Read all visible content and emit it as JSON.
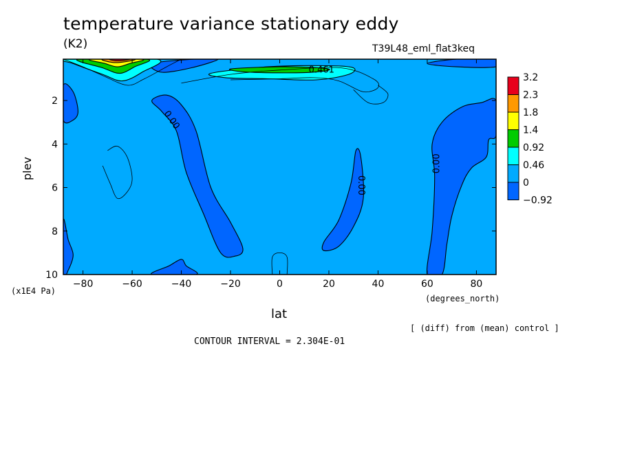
{
  "figure": {
    "title": "temperature variance stationary eddy",
    "units": "(K2)",
    "experiment": "T39L48_eml_flat3keq",
    "diff_note": "[ (diff) from (mean) control ]",
    "contour_interval": "CONTOUR INTERVAL = 2.304E-01"
  },
  "chart_data": {
    "type": "heatmap",
    "title": "temperature variance stationary eddy",
    "xlabel": "lat",
    "ylabel": "plev",
    "x_unit_label": "(degrees_north)",
    "y_unit_label": "(x1E4 Pa)",
    "xlim": [
      -88,
      88
    ],
    "ylim": [
      10,
      0.1
    ],
    "y_inverted": true,
    "x_ticks": [
      -80,
      -60,
      -40,
      -20,
      0,
      20,
      40,
      60,
      80
    ],
    "x_tick_labels": [
      "−80",
      "−60",
      "−40",
      "−20",
      "0",
      "20",
      "40",
      "60",
      "80"
    ],
    "y_ticks": [
      2,
      4,
      6,
      8,
      10
    ],
    "y_tick_labels": [
      "2",
      "4",
      "6",
      "8",
      "10"
    ],
    "colorbar": {
      "labels": [
        "3.2",
        "2.3",
        "1.8",
        "1.4",
        "0.92",
        "0.46",
        "0",
        "−0.92"
      ],
      "colors": [
        "#e8001c",
        "#ff9900",
        "#ffff00",
        "#00cc00",
        "#00ffff",
        "#00aaff",
        "#0066ff"
      ]
    },
    "background_color": "#00aaff",
    "negative_color": "#0066ff",
    "contour_labels": [
      {
        "text": "0.00",
        "lat": -44,
        "plev": 2.9,
        "rotate": 55
      },
      {
        "text": "0.00",
        "lat": 33,
        "plev": 5.9,
        "rotate": 90
      },
      {
        "text": "0.00",
        "lat": 64,
        "plev": 4.9,
        "rotate": -90
      },
      {
        "text": "0.461",
        "lat": 17,
        "plev": 0.6,
        "rotate": 0
      }
    ],
    "regions": [
      {
        "level": -0.92,
        "label": "southern tilted tongue",
        "points": [
          [
            -52,
            2.0
          ],
          [
            -46,
            1.75
          ],
          [
            -40,
            2.2
          ],
          [
            -34,
            3.4
          ],
          [
            -28,
            6.0
          ],
          [
            -20,
            7.6
          ],
          [
            -15,
            8.8
          ],
          [
            -18,
            9.15
          ],
          [
            -24,
            9.0
          ],
          [
            -31,
            7.2
          ],
          [
            -38,
            5.3
          ],
          [
            -42,
            3.4
          ],
          [
            -48,
            2.5
          ]
        ]
      },
      {
        "level": -0.92,
        "label": "northern subtropical tongue",
        "points": [
          [
            31,
            4.3
          ],
          [
            33,
            4.6
          ],
          [
            34,
            6.5
          ],
          [
            30,
            7.8
          ],
          [
            24,
            8.7
          ],
          [
            18,
            8.9
          ],
          [
            18,
            8.5
          ],
          [
            24,
            7.5
          ],
          [
            29,
            5.8
          ]
        ]
      },
      {
        "level": -0.92,
        "label": "north polar band",
        "points": [
          [
            60,
            10
          ],
          [
            62,
            8.0
          ],
          [
            63,
            5.5
          ],
          [
            62,
            4.0
          ],
          [
            66,
            3.0
          ],
          [
            74,
            2.3
          ],
          [
            82,
            2.1
          ],
          [
            88,
            2.0
          ],
          [
            88,
            3.6
          ],
          [
            85,
            3.8
          ],
          [
            84,
            4.6
          ],
          [
            78,
            5.1
          ],
          [
            74,
            5.9
          ],
          [
            70,
            7.3
          ],
          [
            68,
            8.6
          ],
          [
            66,
            10
          ]
        ]
      },
      {
        "level": -0.92,
        "label": "far south edge",
        "points": [
          [
            -88,
            1.3
          ],
          [
            -84,
            1.6
          ],
          [
            -82,
            2.5
          ],
          [
            -84,
            2.9
          ],
          [
            -88,
            2.9
          ]
        ]
      },
      {
        "level": -0.92,
        "label": "south lower edge",
        "points": [
          [
            -88,
            7.5
          ],
          [
            -86,
            8.4
          ],
          [
            -84,
            9.1
          ],
          [
            -86,
            9.8
          ],
          [
            -88,
            10
          ]
        ]
      },
      {
        "level": -0.92,
        "label": "south surface patch",
        "points": [
          [
            -52,
            10
          ],
          [
            -45,
            9.6
          ],
          [
            -40,
            9.3
          ],
          [
            -38,
            9.6
          ],
          [
            -34,
            10
          ]
        ]
      },
      {
        "level": -0.92,
        "label": "top-left strip",
        "points": [
          [
            -52,
            0.3
          ],
          [
            -35,
            0.1
          ],
          [
            -25,
            0.1
          ],
          [
            -36,
            0.5
          ],
          [
            -48,
            0.7
          ]
        ]
      },
      {
        "level": -0.92,
        "label": "top-right strip",
        "points": [
          [
            60,
            0.3
          ],
          [
            72,
            0.1
          ],
          [
            88,
            0.1
          ],
          [
            88,
            0.45
          ],
          [
            72,
            0.45
          ]
        ]
      },
      {
        "level": 0.46,
        "label": "south top maximum cyan",
        "points": [
          [
            -88,
            0.1
          ],
          [
            -50,
            0.1
          ],
          [
            -56,
            0.7
          ],
          [
            -64,
            1.1
          ],
          [
            -72,
            0.8
          ],
          [
            -84,
            0.3
          ]
        ]
      },
      {
        "level": 0.92,
        "label": "south top maximum green",
        "points": [
          [
            -82,
            0.1
          ],
          [
            -54,
            0.1
          ],
          [
            -59,
            0.45
          ],
          [
            -65,
            0.75
          ],
          [
            -72,
            0.5
          ]
        ]
      },
      {
        "level": 1.4,
        "label": "south top maximum yellow",
        "points": [
          [
            -77,
            0.1
          ],
          [
            -56,
            0.1
          ],
          [
            -61,
            0.3
          ],
          [
            -66,
            0.45
          ],
          [
            -71,
            0.3
          ]
        ]
      },
      {
        "level": 2.3,
        "label": "south top maximum orange",
        "points": [
          [
            -72,
            0.1
          ],
          [
            -59,
            0.1
          ],
          [
            -63,
            0.22
          ],
          [
            -68,
            0.25
          ]
        ]
      },
      {
        "level": 3.2,
        "label": "south top maximum red",
        "points": [
          [
            -69,
            0.1
          ],
          [
            -61,
            0.1
          ],
          [
            -64,
            0.16
          ],
          [
            -67,
            0.17
          ]
        ]
      },
      {
        "level": 0.46,
        "label": "equatorial upper cyan band",
        "points": [
          [
            -28,
            0.75
          ],
          [
            -5,
            0.45
          ],
          [
            20,
            0.4
          ],
          [
            30,
            0.5
          ],
          [
            28,
            0.8
          ],
          [
            15,
            1.05
          ],
          [
            -5,
            1.0
          ],
          [
            -22,
            0.95
          ]
        ]
      },
      {
        "level": 0.92,
        "label": "equatorial upper green band",
        "points": [
          [
            -20,
            0.55
          ],
          [
            0,
            0.45
          ],
          [
            16,
            0.5
          ],
          [
            20,
            0.6
          ],
          [
            10,
            0.72
          ],
          [
            -12,
            0.7
          ]
        ]
      }
    ],
    "contour_lines": [
      {
        "label": "south top outer",
        "points": [
          [
            -88,
            0.1
          ],
          [
            -80,
            0.45
          ],
          [
            -72,
            0.85
          ],
          [
            -62,
            1.3
          ],
          [
            -55,
            1.0
          ],
          [
            -46,
            0.45
          ],
          [
            -40,
            0.1
          ]
        ]
      },
      {
        "label": "south low-level closed",
        "points": [
          [
            -70,
            4.3
          ],
          [
            -66,
            4.1
          ],
          [
            -62,
            4.6
          ],
          [
            -60,
            5.6
          ],
          [
            -62,
            6.2
          ],
          [
            -66,
            6.5
          ],
          [
            -69,
            5.8
          ],
          [
            -72,
            5.0
          ]
        ]
      },
      {
        "label": "equatorial upper outer",
        "points": [
          [
            -40,
            1.2
          ],
          [
            -20,
            0.8
          ],
          [
            0,
            0.6
          ],
          [
            25,
            0.5
          ],
          [
            38,
            1.0
          ],
          [
            40,
            1.4
          ],
          [
            34,
            1.6
          ],
          [
            24,
            1.1
          ],
          [
            14,
            0.95
          ],
          [
            0,
            1.0
          ],
          [
            -20,
            1.05
          ]
        ]
      },
      {
        "label": "right stratosphere thin",
        "points": [
          [
            30,
            1.5
          ],
          [
            36,
            2.1
          ],
          [
            42,
            2.1
          ],
          [
            44,
            1.7
          ],
          [
            40,
            1.3
          ]
        ]
      },
      {
        "label": "surface equatorial bump",
        "points": [
          [
            -3,
            10
          ],
          [
            -3,
            9.2
          ],
          [
            0,
            9.0
          ],
          [
            3,
            9.2
          ],
          [
            3,
            10
          ]
        ]
      }
    ]
  }
}
